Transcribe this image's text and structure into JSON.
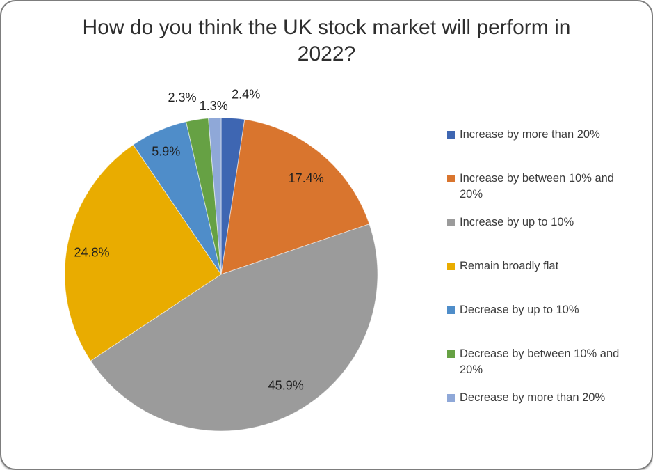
{
  "chart_data": {
    "type": "pie",
    "title": "How do you think the UK stock market will perform in 2022?",
    "categories": [
      "Increase by more than 20%",
      "Increase by between 10% and 20%",
      "Increase by up to 10%",
      "Remain broadly flat",
      "Decrease by up to 10%",
      "Decrease by between 10% and 20%",
      "Decrease by more than 20%"
    ],
    "values": [
      2.4,
      17.4,
      45.9,
      24.8,
      5.9,
      2.3,
      1.3
    ],
    "data_labels": [
      "2.4%",
      "17.4%",
      "45.9%",
      "24.8%",
      "5.9%",
      "2.3%",
      "1.3%"
    ],
    "colors": [
      "#3E66B2",
      "#D9752E",
      "#9B9B9B",
      "#E9AC00",
      "#4F8DC9",
      "#66A144",
      "#8FA8D8"
    ],
    "legend_position": "right",
    "start_angle_deg": 0,
    "direction": "clockwise",
    "background_color": "#ffffff"
  }
}
